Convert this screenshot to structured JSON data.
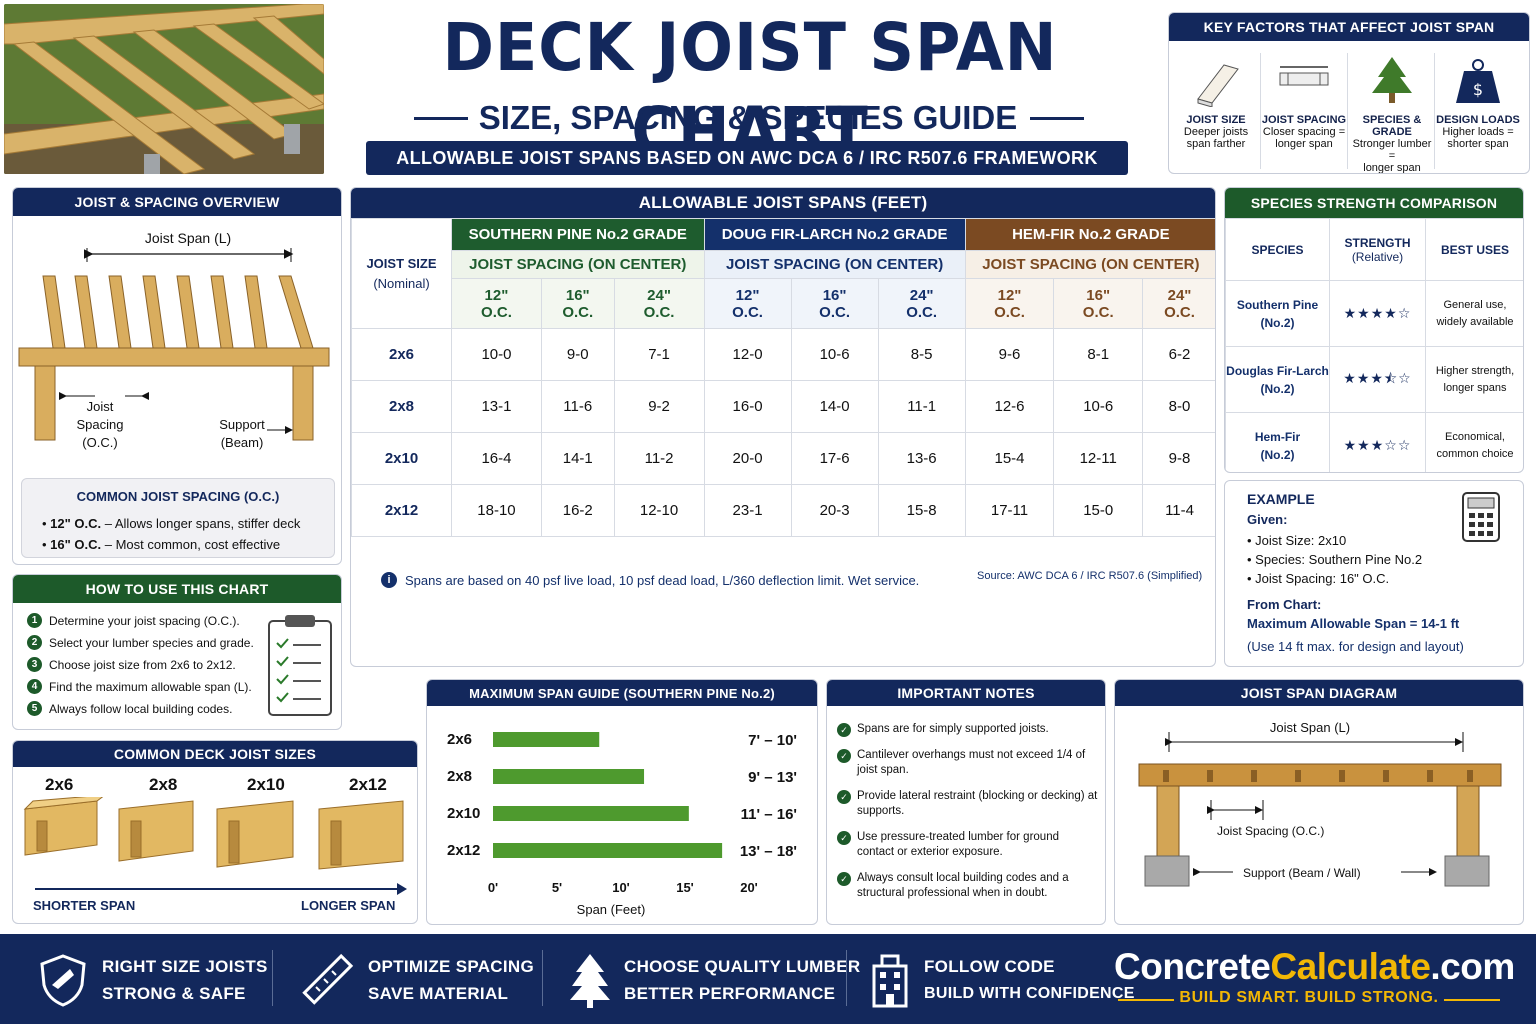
{
  "title": "DECK JOIST SPAN CHART",
  "subtitle": "SIZE, SPACING & SPECIES GUIDE",
  "banner": "ALLOWABLE JOIST SPANS BASED ON AWC DCA 6 / IRC R507.6 FRAMEWORK",
  "key_factors": {
    "title": "KEY FACTORS THAT AFFECT JOIST SPAN",
    "items": [
      {
        "label": "JOIST SIZE",
        "desc1": "Deeper joists",
        "desc2": "span farther"
      },
      {
        "label": "JOIST SPACING",
        "desc1": "Closer spacing =",
        "desc2": "longer span"
      },
      {
        "label": "SPECIES & GRADE",
        "desc1": "Stronger lumber =",
        "desc2": "longer span"
      },
      {
        "label": "DESIGN LOADS",
        "desc1": "Higher loads =",
        "desc2": "shorter span"
      }
    ]
  },
  "overview": {
    "title": "JOIST & SPACING OVERVIEW",
    "span_label": "Joist Span (L)",
    "spacing_label": [
      "Joist",
      "Spacing",
      "(O.C.)"
    ],
    "support_label": [
      "Support",
      "(Beam)"
    ],
    "common_title": "COMMON JOIST SPACING (O.C.)",
    "common_items": [
      {
        "bold": "12\" O.C.",
        "text": " – Allows longer spans, stiffer deck"
      },
      {
        "bold": "16\" O.C.",
        "text": " – Most common, cost effective"
      }
    ]
  },
  "how_to": {
    "title": "HOW TO USE THIS CHART",
    "steps": [
      "Determine your joist spacing (O.C.).",
      "Select your lumber species and grade.",
      "Choose joist size from 2x6 to 2x12.",
      "Find the maximum allowable span (L).",
      "Always follow local building codes."
    ]
  },
  "common_sizes": {
    "title": "COMMON DECK JOIST SIZES",
    "sizes": [
      "2x6",
      "2x8",
      "2x10",
      "2x12"
    ],
    "left": "SHORTER SPAN",
    "right": "LONGER SPAN"
  },
  "span_table": {
    "title": "ALLOWABLE JOIST SPANS (FEET)",
    "size_header": "JOIST SIZE",
    "size_sub": "(Nominal)",
    "species": [
      "SOUTHERN PINE No.2 GRADE",
      "DOUG FIR-LARCH No.2 GRADE",
      "HEM-FIR No.2 GRADE"
    ],
    "spacing_label": "JOIST SPACING (ON CENTER)",
    "spacings": [
      "12\"",
      "16\"",
      "24\""
    ],
    "oc": "O.C.",
    "rows": [
      {
        "size": "2x6",
        "values": [
          "10-0",
          "9-0",
          "7-1",
          "12-0",
          "10-6",
          "8-5",
          "9-6",
          "8-1",
          "6-2"
        ]
      },
      {
        "size": "2x8",
        "values": [
          "13-1",
          "11-6",
          "9-2",
          "16-0",
          "14-0",
          "11-1",
          "12-6",
          "10-6",
          "8-0"
        ]
      },
      {
        "size": "2x10",
        "values": [
          "16-4",
          "14-1",
          "11-2",
          "20-0",
          "17-6",
          "13-6",
          "15-4",
          "12-11",
          "9-8"
        ]
      },
      {
        "size": "2x12",
        "values": [
          "18-10",
          "16-2",
          "12-10",
          "23-1",
          "20-3",
          "15-8",
          "17-11",
          "15-0",
          "11-4"
        ]
      }
    ],
    "note": "Spans are based on 40 psf live load, 10 psf dead load, L/360 deflection limit. Wet service.",
    "source": "Source:  AWC DCA 6 / IRC R507.6 (Simplified)"
  },
  "species_table": {
    "title": "SPECIES STRENGTH COMPARISON",
    "headers": [
      "SPECIES",
      "STRENGTH",
      "(Relative)",
      "BEST USES"
    ],
    "rows": [
      {
        "name": "Southern Pine",
        "grade": "(No.2)",
        "stars": "★★★★☆",
        "use1": "General use,",
        "use2": "widely available"
      },
      {
        "name": "Douglas Fir-Larch",
        "grade": "(No.2)",
        "stars": "★★★⯪☆",
        "use1": "Higher strength,",
        "use2": "longer spans"
      },
      {
        "name": "Hem-Fir",
        "grade": "(No.2)",
        "stars": "★★★☆☆",
        "use1": "Economical,",
        "use2": "common choice"
      }
    ]
  },
  "example": {
    "title": "EXAMPLE",
    "given": "Given:",
    "items": [
      "Joist Size: 2x10",
      "Species: Southern Pine No.2",
      "Joist Spacing: 16\" O.C."
    ],
    "from": "From Chart:",
    "result": "Maximum Allowable Span = 14-1 ft",
    "note": "(Use 14 ft max. for design and layout)"
  },
  "chart_data": {
    "type": "bar",
    "title": "MAXIMUM SPAN GUIDE (SOUTHERN PINE No.2)",
    "categories": [
      "2x6",
      "2x8",
      "2x10",
      "2x12"
    ],
    "values": [
      8.3,
      11.8,
      15.3,
      17.9
    ],
    "range_labels": [
      "7' – 10'",
      "9' – 13'",
      "11' – 16'",
      "13' – 18'"
    ],
    "xlabel": "Span (Feet)",
    "xticks": [
      "0'",
      "5'",
      "10'",
      "15'",
      "20'"
    ],
    "xlim": [
      0,
      20
    ],
    "bar_color": "#4e9a2e"
  },
  "notes": {
    "title": "IMPORTANT NOTES",
    "items": [
      "Spans are for simply supported joists.",
      "Cantilever overhangs must not exceed 1/4 of joist span.",
      "Provide lateral restraint (blocking or decking) at supports.",
      "Use pressure-treated lumber for ground contact or exterior exposure.",
      "Always consult local building codes and a structural professional when in doubt."
    ]
  },
  "diagram": {
    "title": "JOIST SPAN DIAGRAM",
    "span": "Joist Span (L)",
    "spacing": "Joist Spacing (O.C.)",
    "support": "Support (Beam / Wall)"
  },
  "footer": {
    "items": [
      {
        "l1": "RIGHT SIZE JOISTS",
        "l2": "STRONG & SAFE",
        "icon": "shield-icon"
      },
      {
        "l1": "OPTIMIZE SPACING",
        "l2": "SAVE MATERIAL",
        "icon": "ruler-icon"
      },
      {
        "l1": "CHOOSE QUALITY LUMBER",
        "l2": "BETTER PERFORMANCE",
        "icon": "tree-icon"
      },
      {
        "l1": "FOLLOW CODE",
        "l2": "BUILD WITH CONFIDENCE",
        "icon": "building-icon"
      }
    ],
    "brand_a": "Concrete",
    "brand_b": "Calculate",
    "brand_c": ".com",
    "tagline": "BUILD SMART. BUILD STRONG."
  }
}
